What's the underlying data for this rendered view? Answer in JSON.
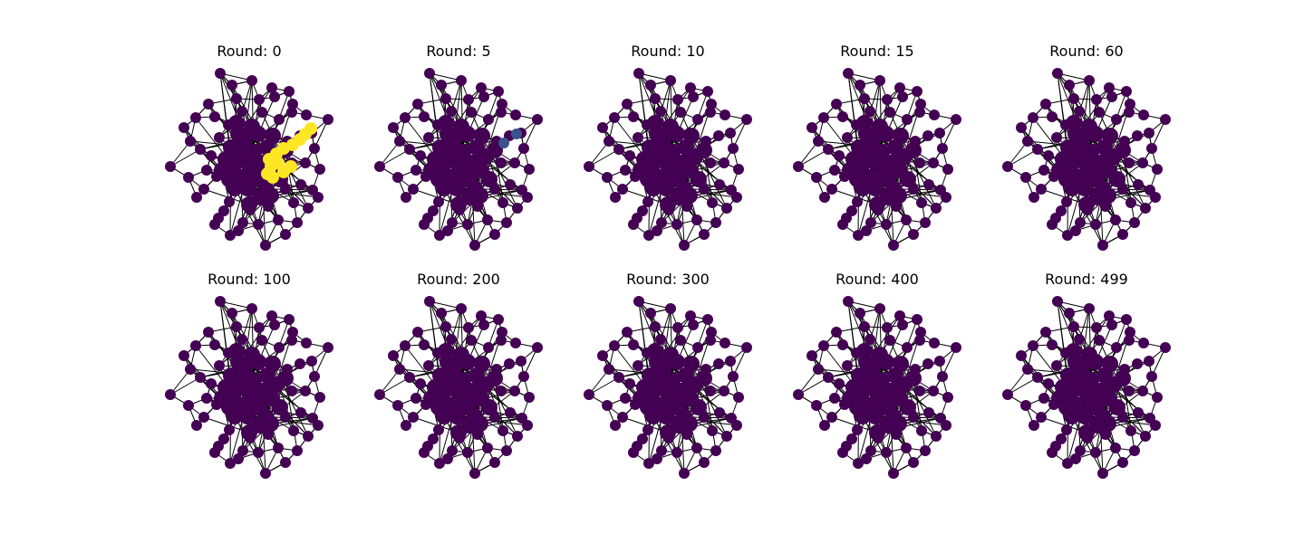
{
  "figure": {
    "panels": [
      {
        "title": "Round: 0",
        "highlight": "hot"
      },
      {
        "title": "Round: 5",
        "highlight": "faint"
      },
      {
        "title": "Round: 10",
        "highlight": "none"
      },
      {
        "title": "Round: 15",
        "highlight": "none"
      },
      {
        "title": "Round: 60",
        "highlight": "none"
      },
      {
        "title": "Round: 100",
        "highlight": "none"
      },
      {
        "title": "Round: 200",
        "highlight": "none"
      },
      {
        "title": "Round: 300",
        "highlight": "none"
      },
      {
        "title": "Round: 400",
        "highlight": "none"
      },
      {
        "title": "Round: 499",
        "highlight": "none"
      }
    ]
  },
  "colors": {
    "node": "#440154",
    "edge": "#000000",
    "hot": "#fde725",
    "faint": "#3b528b"
  }
}
